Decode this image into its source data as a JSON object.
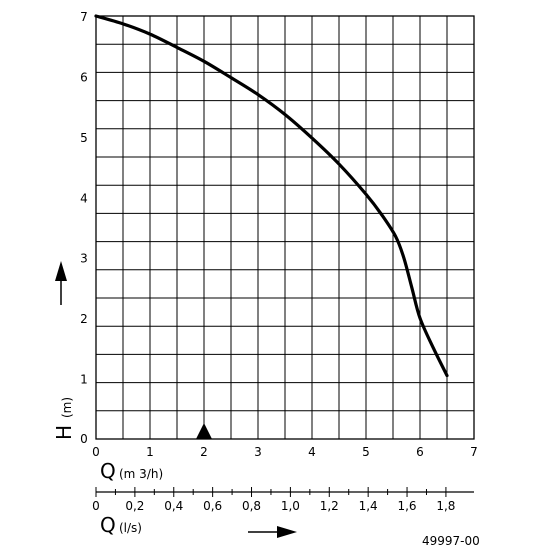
{
  "chart_data": {
    "type": "line",
    "title": "",
    "xlabel": "Q",
    "xlabel_unit": "(m 3/h)",
    "ylabel": "H",
    "ylabel_unit": "(m)",
    "xlim": [
      0,
      7
    ],
    "ylim": [
      0,
      7
    ],
    "grid": true,
    "x_ticks": [
      "0",
      "1",
      "2",
      "3",
      "4",
      "5",
      "6",
      "7"
    ],
    "y_ticks": [
      "0",
      "1",
      "2",
      "3",
      "4",
      "5",
      "6",
      "7"
    ],
    "series": [
      {
        "x": [
          0,
          0.5,
          1.0,
          1.5,
          2.0,
          2.5,
          3.0,
          3.5,
          4.0,
          4.5,
          5.0,
          5.3,
          5.55,
          5.7,
          5.85,
          6.0,
          6.25,
          6.5
        ],
        "y": [
          7.0,
          6.87,
          6.7,
          6.48,
          6.25,
          5.98,
          5.7,
          5.37,
          4.98,
          4.55,
          4.05,
          3.7,
          3.35,
          3.0,
          2.5,
          2.0,
          1.5,
          1.05
        ]
      }
    ],
    "marker_x": 2,
    "secondary_axis": {
      "label": "Q",
      "unit": "(l/s)",
      "ticks": [
        "0",
        "0,2",
        "0,4",
        "0,6",
        "0,8",
        "1,0",
        "1,2",
        "1,4",
        "1,6",
        "1,8"
      ],
      "tick_values": [
        0,
        0.2,
        0.4,
        0.6,
        0.8,
        1.0,
        1.2,
        1.4,
        1.6,
        1.8
      ]
    },
    "figure_code": "49997-00"
  }
}
